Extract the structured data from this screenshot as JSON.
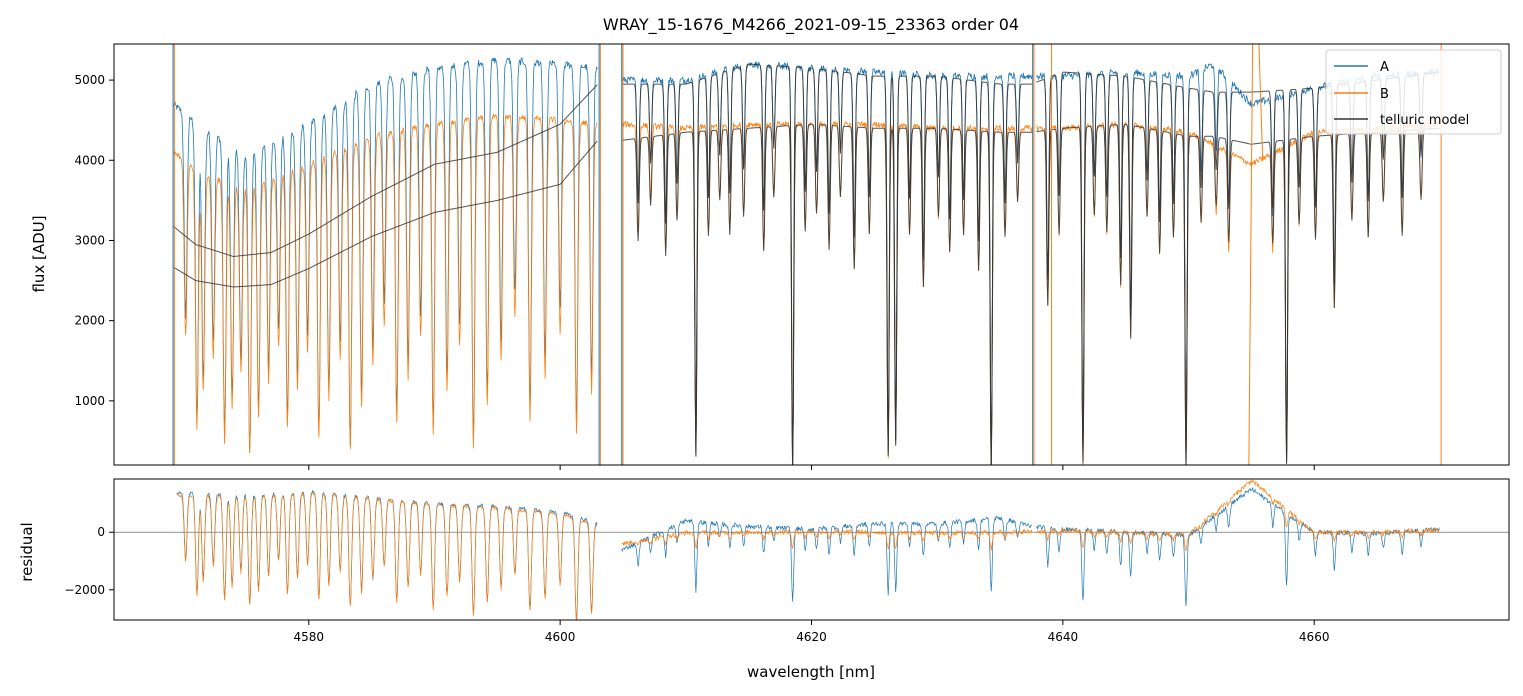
{
  "chart_data": {
    "type": "line",
    "title": "WRAY_15-1676_M4266_2021-09-15_23363  order 04",
    "xlabel": "wavelength [nm]",
    "xlim": [
      4564.5,
      4675.5
    ],
    "x_ticks": [
      4580,
      4600,
      4620,
      4640,
      4660
    ],
    "x_tick_labels": [
      "4580",
      "4600",
      "4620",
      "4640",
      "4660"
    ],
    "colors": {
      "A": "#1f77b4",
      "B": "#ff7f0e",
      "model": "#333333",
      "zero_line": "#555555"
    },
    "panels": [
      {
        "name": "flux",
        "ylabel": "flux [ADU]",
        "ylim": [
          200,
          5450
        ],
        "y_ticks": [
          1000,
          2000,
          3000,
          4000,
          5000
        ],
        "y_tick_labels": [
          "1000",
          "2000",
          "3000",
          "4000",
          "5000"
        ],
        "legend": {
          "position": "top-right",
          "entries": [
            "A",
            "B",
            "telluric model"
          ]
        },
        "series": [
          {
            "name": "A",
            "x": [
              4569.2,
              4572,
              4575,
              4580,
              4585,
              4590,
              4595,
              4600,
              4603,
              4605,
              4610,
              4615,
              4620,
              4625,
              4630,
              4635,
              4637.5,
              4640,
              4645,
              4650,
              4652,
              4655,
              4660,
              4665,
              4670
            ],
            "y": [
              4700,
              4350,
              4100,
              4450,
              4950,
              5150,
              5250,
              5200,
              5150,
              5000,
              5000,
              5200,
              5150,
              5100,
              5050,
              5050,
              5050,
              5050,
              5100,
              5050,
              5200,
              4700,
              4900,
              5050,
              5100
            ]
          },
          {
            "name": "B",
            "x": [
              4569.2,
              4572,
              4575,
              4580,
              4585,
              4590,
              4595,
              4600,
              4603,
              4605,
              4610,
              4615,
              4620,
              4625,
              4630,
              4635,
              4637.5,
              4640,
              4645,
              4650,
              4652,
              4655,
              4660,
              4665,
              4670
            ],
            "y": [
              4100,
              3800,
              3650,
              3950,
              4300,
              4450,
              4550,
              4500,
              4450,
              4450,
              4400,
              4450,
              4450,
              4450,
              4400,
              4400,
              4400,
              4400,
              4450,
              4350,
              4200,
              3950,
              4350,
              4400,
              4450
            ]
          },
          {
            "name": "telluric model (A)",
            "x": [
              4569.2,
              4571,
              4574,
              4577,
              4580,
              4585,
              4590,
              4595,
              4600,
              4603,
              4605,
              4610,
              4615,
              4620,
              4625,
              4630,
              4635,
              4637.5,
              4640,
              4645,
              4650,
              4652,
              4655,
              4660,
              4665,
              4670
            ],
            "y": [
              3180,
              2950,
              2800,
              2850,
              3080,
              3550,
              3950,
              4100,
              4450,
              4950,
              4950,
              4950,
              5200,
              5150,
              5050,
              5050,
              4950,
              4950,
              5100,
              5050,
              4900,
              4850,
              4850,
              4900,
              5000,
              5100
            ]
          },
          {
            "name": "telluric model (B)",
            "x": [
              4569.2,
              4571,
              4574,
              4577,
              4580,
              4585,
              4590,
              4595,
              4600,
              4603,
              4605,
              4610,
              4615,
              4620,
              4625,
              4630,
              4635,
              4637.5,
              4640,
              4645,
              4650,
              4652,
              4655,
              4660,
              4665,
              4670
            ],
            "y": [
              2670,
              2500,
              2420,
              2450,
              2650,
              3050,
              3350,
              3500,
              3700,
              4250,
              4250,
              4350,
              4400,
              4450,
              4400,
              4400,
              4350,
              4350,
              4400,
              4450,
              4300,
              4300,
              4200,
              4300,
              4350,
              4400
            ]
          }
        ]
      },
      {
        "name": "residual",
        "ylabel": "residual",
        "ylim": [
          -3050,
          1850
        ],
        "y_ticks": [
          -2000,
          0
        ],
        "y_tick_labels": [
          "−2000",
          "0"
        ],
        "series": [
          {
            "name": "A",
            "x": [
              4569.5,
              4575,
              4580,
              4585,
              4590,
              4595,
              4600,
              4603,
              4605,
              4610,
              4615,
              4620,
              4625,
              4630,
              4635,
              4637.5,
              4640,
              4645,
              4650,
              4655,
              4660,
              4665,
              4670
            ],
            "y": [
              1400,
              1300,
              1400,
              1200,
              1000,
              900,
              700,
              300,
              -600,
              400,
              200,
              100,
              300,
              300,
              500,
              200,
              100,
              0,
              -100,
              1500,
              0,
              -50,
              100
            ]
          },
          {
            "name": "B",
            "x": [
              4569.5,
              4575,
              4580,
              4585,
              4590,
              4595,
              4600,
              4603,
              4605,
              4610,
              4615,
              4620,
              4625,
              4630,
              4635,
              4637.5,
              4640,
              4645,
              4650,
              4655,
              4660,
              4665,
              4670
            ],
            "y": [
              1300,
              1250,
              1350,
              1150,
              950,
              850,
              650,
              250,
              -400,
              -20,
              0,
              20,
              0,
              -30,
              0,
              20,
              50,
              -20,
              -100,
              1800,
              -20,
              0,
              80
            ]
          }
        ]
      }
    ]
  }
}
